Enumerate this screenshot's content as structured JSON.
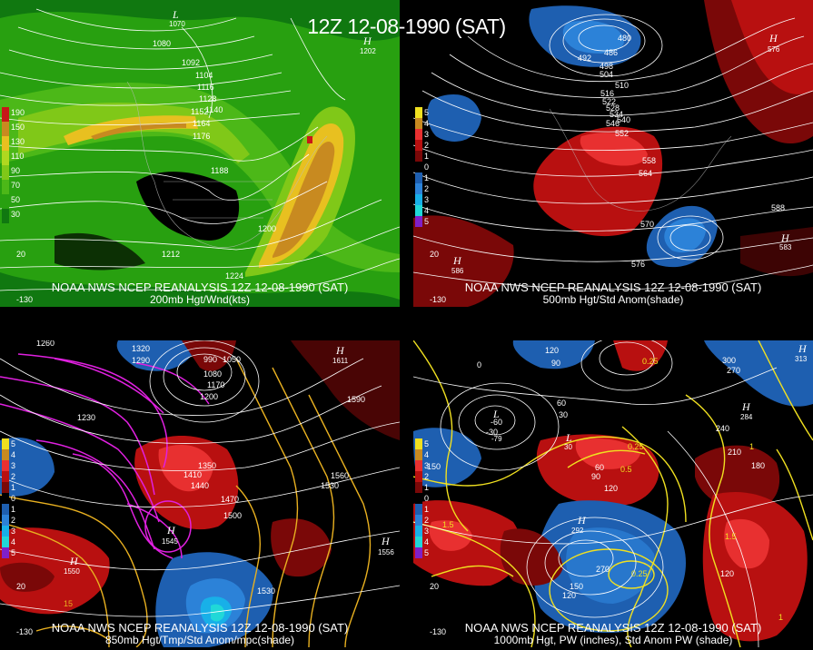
{
  "title": "12Z 12-08-1990 (SAT)",
  "colors": {
    "background": "#000000",
    "contour": "#ffffff",
    "warm": "#b81010",
    "cold": "#1e5fb0",
    "pw_contour": "#f0e020",
    "temp_contour": "#e020e0"
  },
  "panels": [
    {
      "caption_line1": "NOAA NWS NCEP REANALYSIS 12Z 12-08-1990 (SAT)",
      "caption_line2": "200mb Hgt/Wnd(kts)",
      "legend": [
        {
          "label": "190",
          "color": "#c81818"
        },
        {
          "label": "150",
          "color": "#c88a20"
        },
        {
          "label": "130",
          "color": "#e8c020"
        },
        {
          "label": "110",
          "color": "#b0d820"
        },
        {
          "label": "90",
          "color": "#80c818"
        },
        {
          "label": "70",
          "color": "#4cb818"
        },
        {
          "label": "50",
          "color": "#28a010"
        },
        {
          "label": "30",
          "color": "#107810"
        }
      ],
      "height_labels": [
        "1080",
        "1092",
        "1104",
        "1116",
        "1128",
        "1140",
        "1152",
        "1164",
        "1176",
        "1188",
        "1200",
        "1212",
        "1224"
      ],
      "highs": [
        "1202"
      ],
      "lows": [
        "1070"
      ],
      "axis_labels": [
        "20",
        "-130"
      ]
    },
    {
      "caption_line1": "NOAA NWS NCEP REANALYSIS 12Z 12-08-1990 (SAT)",
      "caption_line2": "500mb Hgt/Std Anom(shade)",
      "legend": [
        {
          "label": "5",
          "color": "#f0e020"
        },
        {
          "label": "4",
          "color": "#c88a20"
        },
        {
          "label": "3",
          "color": "#e83030"
        },
        {
          "label": "2",
          "color": "#b81010"
        },
        {
          "label": "1",
          "color": "#7a0808"
        },
        {
          "label": "0",
          "color": "#000000"
        },
        {
          "label": "1",
          "color": "#1e5fb0"
        },
        {
          "label": "2",
          "color": "#2c82d8"
        },
        {
          "label": "3",
          "color": "#18b0e8"
        },
        {
          "label": "4",
          "color": "#20d8d8"
        },
        {
          "label": "5",
          "color": "#8020c8"
        }
      ],
      "height_labels": [
        "480",
        "486",
        "492",
        "498",
        "504",
        "510",
        "516",
        "522",
        "528",
        "534",
        "540",
        "546",
        "552",
        "558",
        "564",
        "570",
        "576",
        "588"
      ],
      "highs": [
        "576",
        "586",
        "583"
      ],
      "axis_labels": [
        "20",
        "-130"
      ]
    },
    {
      "caption_line1": "NOAA NWS NCEP REANALYSIS 12Z 12-08-1990 (SAT)",
      "caption_line2": "850mb Hgt/Tmp/Std Anom/mpc(shade)",
      "legend": [
        {
          "label": "5",
          "color": "#f0e020"
        },
        {
          "label": "4",
          "color": "#c88a20"
        },
        {
          "label": "3",
          "color": "#e83030"
        },
        {
          "label": "2",
          "color": "#b81010"
        },
        {
          "label": "1",
          "color": "#7a0808"
        },
        {
          "label": "0",
          "color": "#000000"
        },
        {
          "label": "1",
          "color": "#1e5fb0"
        },
        {
          "label": "2",
          "color": "#2c82d8"
        },
        {
          "label": "3",
          "color": "#18b0e8"
        },
        {
          "label": "4",
          "color": "#20d8d8"
        },
        {
          "label": "5",
          "color": "#8020c8"
        }
      ],
      "height_labels": [
        "1260",
        "1290",
        "1320",
        "1230",
        "1200",
        "1170",
        "1080",
        "990",
        "1050",
        "1410",
        "1350",
        "1440",
        "1470",
        "1500",
        "1560",
        "1530",
        "1590",
        "1530",
        "1545",
        "1530"
      ],
      "highs": [
        "1611",
        "1545",
        "1556",
        "1550"
      ],
      "axis_labels": [
        "20",
        "15",
        "-130",
        "0"
      ]
    },
    {
      "caption_line1": "NOAA NWS NCEP REANALYSIS 12Z 12-08-1990 (SAT)",
      "caption_line2": "1000mb Hgt, PW (inches), Std Anom PW (shade)",
      "legend": [
        {
          "label": "5",
          "color": "#f0e020"
        },
        {
          "label": "4",
          "color": "#c88a20"
        },
        {
          "label": "3",
          "color": "#e83030"
        },
        {
          "label": "2",
          "color": "#b81010"
        },
        {
          "label": "1",
          "color": "#7a0808"
        },
        {
          "label": "0",
          "color": "#000000"
        },
        {
          "label": "1",
          "color": "#1e5fb0"
        },
        {
          "label": "2",
          "color": "#2c82d8"
        },
        {
          "label": "3",
          "color": "#18b0e8"
        },
        {
          "label": "4",
          "color": "#20d8d8"
        },
        {
          "label": "5",
          "color": "#8020c8"
        }
      ],
      "height_labels": [
        "120",
        "90",
        "60",
        "30",
        "-30",
        "-60",
        "0",
        "150",
        "180",
        "210",
        "240",
        "270",
        "300",
        "120",
        "60",
        "90",
        "120",
        "150",
        "120",
        "270"
      ],
      "pw_labels": [
        "0.25",
        "0.5",
        "1.5",
        "0.25",
        "1",
        "0.25",
        "1.5",
        "1"
      ],
      "highs": [
        "313",
        "284",
        "292"
      ],
      "lows": [
        "-79",
        "30"
      ],
      "axis_labels": [
        "20",
        "-130"
      ]
    }
  ]
}
